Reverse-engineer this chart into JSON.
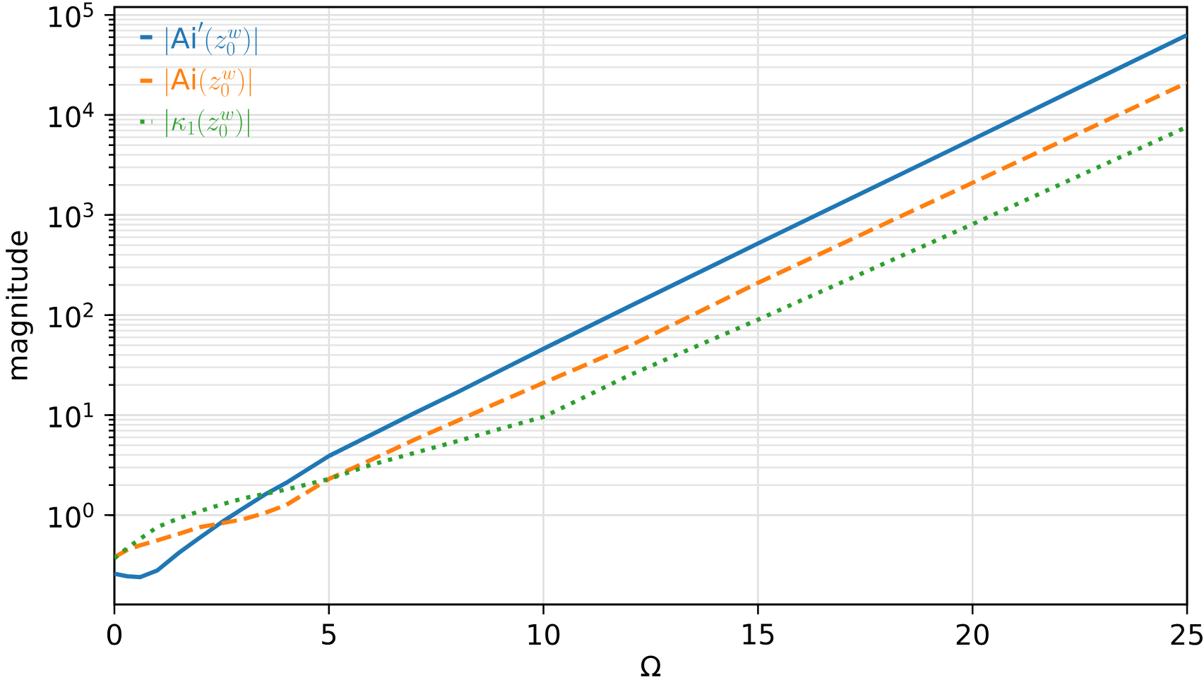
{
  "chart_data": {
    "type": "line",
    "xlabel": "Ω",
    "ylabel": "magnitude",
    "x": [
      0,
      0.3,
      0.6,
      1,
      1.5,
      2,
      2.5,
      3,
      3.5,
      4,
      5,
      6,
      7,
      8,
      9,
      10,
      12,
      15,
      20,
      25
    ],
    "series": [
      {
        "name": "|\\mathrm{Ai}'(z_0^w)|",
        "color": "#1f77b4",
        "line_style": "solid",
        "values": [
          0.26,
          0.245,
          0.24,
          0.28,
          0.42,
          0.6,
          0.85,
          1.17,
          1.6,
          2.1,
          3.9,
          6.4,
          10.5,
          17,
          28,
          46,
          122,
          520,
          5700,
          63000
        ]
      },
      {
        "name": "|\\mathrm{Ai}(z_0^w)|",
        "color": "#ff7f0e",
        "line_style": "dashed",
        "values": [
          0.38,
          0.45,
          0.5,
          0.56,
          0.65,
          0.76,
          0.83,
          0.91,
          1.05,
          1.26,
          2.3,
          3.6,
          5.7,
          8.8,
          13.7,
          21,
          49,
          210,
          2100,
          21000
        ]
      },
      {
        "name": "|\\kappa_1(z_0^w)|",
        "color": "#2ca02c",
        "line_style": "dotted",
        "values": [
          0.37,
          0.47,
          0.58,
          0.76,
          0.93,
          1.1,
          1.28,
          1.47,
          1.63,
          1.8,
          2.3,
          3.2,
          4.2,
          5.5,
          7.3,
          9.6,
          25,
          90,
          810,
          7600
        ]
      }
    ],
    "xlim": [
      0,
      25
    ],
    "xticks": [
      0,
      5,
      10,
      15,
      20,
      25
    ],
    "ylim": [
      0.128,
      120000
    ],
    "yticks": [
      {
        "value": 1,
        "label": "10$^{0}$"
      },
      {
        "value": 10,
        "label": "10$^{1}$"
      },
      {
        "value": 100,
        "label": "10$^{2}$"
      },
      {
        "value": 1000,
        "label": "10$^{3}$"
      },
      {
        "value": 10000,
        "label": "10$^{4}$"
      },
      {
        "value": 100000,
        "label": "10$^{5}$"
      }
    ],
    "log": "y",
    "grid": true,
    "legend": "top left"
  }
}
